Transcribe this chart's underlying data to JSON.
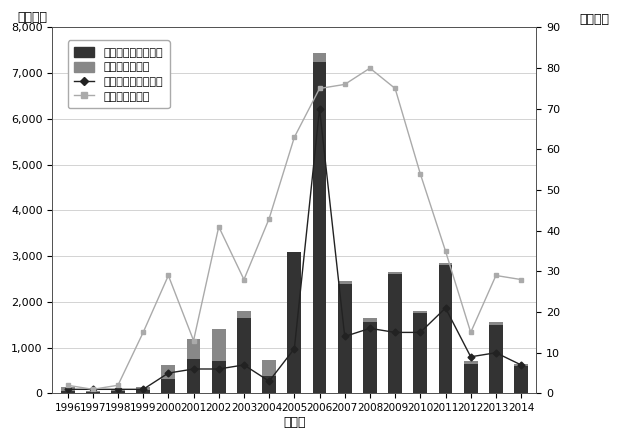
{
  "years": [
    1996,
    1997,
    1998,
    1999,
    2000,
    2001,
    2002,
    2003,
    2004,
    2005,
    2006,
    2007,
    2008,
    2009,
    2010,
    2011,
    2012,
    2013,
    2014
  ],
  "kin_hikokai": [
    50,
    20,
    50,
    80,
    320,
    750,
    700,
    1650,
    380,
    3100,
    7250,
    2400,
    1550,
    2600,
    1750,
    2800,
    650,
    1500,
    600
  ],
  "kin_sonota": [
    100,
    30,
    50,
    50,
    300,
    450,
    700,
    150,
    350,
    0,
    200,
    50,
    100,
    50,
    50,
    50,
    50,
    50,
    50
  ],
  "ken_hikokai": [
    1,
    1,
    1,
    1,
    5,
    6,
    6,
    7,
    3,
    11,
    70,
    14,
    16,
    15,
    15,
    21,
    9,
    10,
    7
  ],
  "ken_sonota": [
    2,
    1,
    2,
    15,
    29,
    13,
    41,
    28,
    43,
    63,
    75,
    76,
    80,
    75,
    54,
    35,
    15,
    29,
    28
  ],
  "bar_color_hikokai": "#333333",
  "bar_color_sonota": "#888888",
  "line_color_hikokai": "#222222",
  "line_color_sonota": "#aaaaaa",
  "left_ylim": [
    0,
    8000
  ],
  "right_ylim": [
    0,
    90
  ],
  "left_yticks": [
    0,
    1000,
    2000,
    3000,
    4000,
    5000,
    6000,
    7000,
    8000
  ],
  "right_yticks": [
    0,
    10,
    20,
    30,
    40,
    50,
    60,
    70,
    80,
    90
  ],
  "ylabel_left": "（億円）",
  "ylabel_right": "（件数）",
  "xlabel": "（年）",
  "legend_labels": [
    "金額（非公開化型）",
    "金額（その他）",
    "件数（非公開化型）",
    "件数（その他）"
  ],
  "background_color": "#ffffff",
  "grid_color": "#cccccc"
}
